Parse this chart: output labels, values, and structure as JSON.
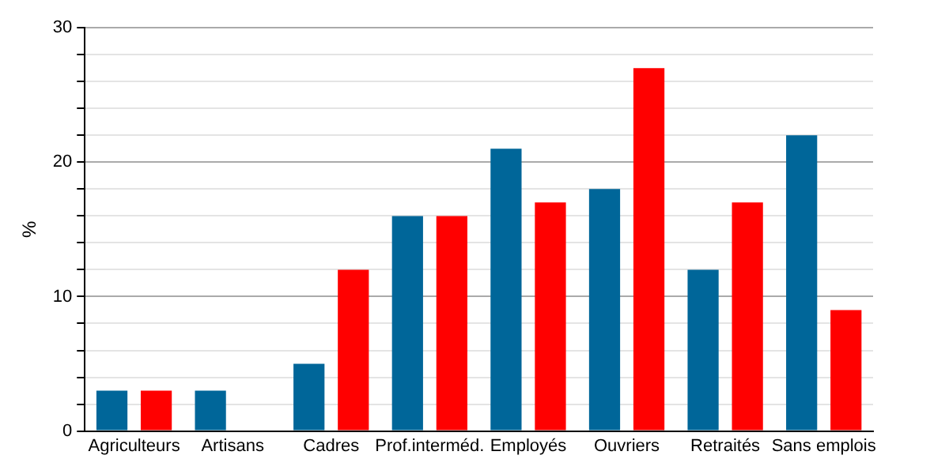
{
  "chart_data": {
    "type": "bar",
    "ylabel": "%",
    "categories": [
      "Agriculteurs",
      "Artisans",
      "Cadres",
      "Prof.interméd.",
      "Employés",
      "Ouvriers",
      "Retraités",
      "Sans emplois"
    ],
    "series": [
      {
        "color": "#006699",
        "values": [
          3,
          3,
          5,
          16,
          21,
          18,
          12,
          22
        ]
      },
      {
        "color": "#ff0000",
        "values": [
          3,
          0,
          12,
          16,
          17,
          27,
          17,
          9
        ]
      }
    ],
    "ylim": [
      0,
      30
    ],
    "yticks": [
      0,
      {
        "value": 2,
        "label": null
      },
      {
        "value": 4,
        "label": null
      },
      {
        "value": 6,
        "label": null
      },
      {
        "value": 8,
        "label": null
      },
      10,
      {
        "value": 12,
        "label": null
      },
      {
        "value": 14,
        "label": null
      },
      {
        "value": 16,
        "label": null
      },
      {
        "value": 18,
        "label": null
      },
      20,
      {
        "value": 22,
        "label": null
      },
      {
        "value": 24,
        "label": null
      },
      {
        "value": 26,
        "label": null
      },
      {
        "value": 28,
        "label": null
      },
      30
    ],
    "grid": "y",
    "legend": false
  }
}
